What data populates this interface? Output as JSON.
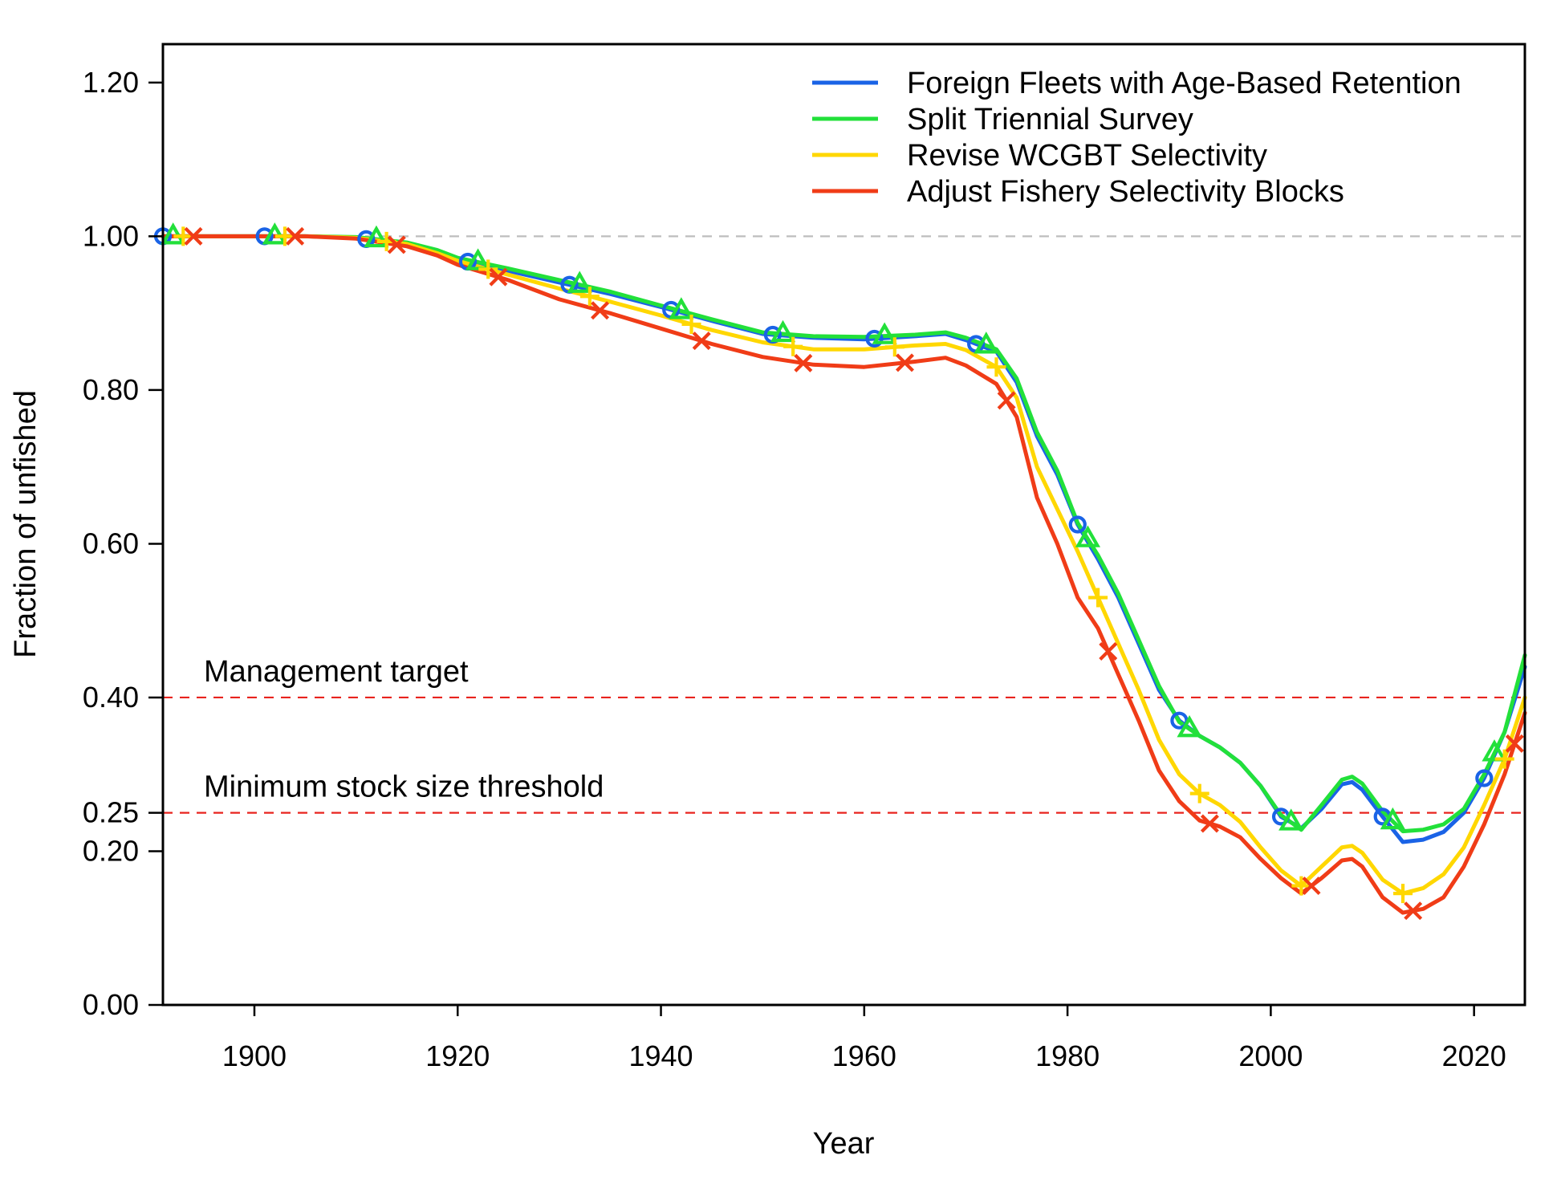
{
  "chart_data": {
    "type": "line",
    "xlabel": "Year",
    "ylabel": "Fraction of unfished",
    "xlim": [
      1891,
      2025
    ],
    "ylim": [
      0,
      1.25
    ],
    "xticks": [
      1900,
      1920,
      1940,
      1960,
      1980,
      2000,
      2020
    ],
    "xtick_labels": [
      "1900",
      "1920",
      "1940",
      "1960",
      "1980",
      "2000",
      "2020"
    ],
    "yticks": [
      0.0,
      0.2,
      0.25,
      0.4,
      0.6,
      0.8,
      1.0,
      1.2
    ],
    "ytick_labels": [
      "0.00",
      "0.20",
      "0.25",
      "0.40",
      "0.60",
      "0.80",
      "1.00",
      "1.20"
    ],
    "legend_position": "top-right",
    "grid": false,
    "reference_lines": [
      {
        "label": "",
        "y": 1.0,
        "color": "#bdbdbd"
      },
      {
        "label": "Management target",
        "y": 0.4,
        "color": "#e8231e"
      },
      {
        "label": "Minimum stock size threshold",
        "y": 0.25,
        "color": "#e8231e"
      }
    ],
    "series": [
      {
        "name": "Foreign Fleets with Age-Based Retention",
        "color": "#1a63e6",
        "marker": "circle",
        "marker_years": [
          1891,
          1901,
          1911,
          1921,
          1931,
          1941,
          1951,
          1961,
          1971,
          1981,
          1991,
          2001,
          2011,
          2021
        ],
        "x": [
          1891,
          1895,
          1900,
          1905,
          1910,
          1915,
          1918,
          1920,
          1925,
          1930,
          1935,
          1940,
          1945,
          1950,
          1955,
          1960,
          1965,
          1968,
          1970,
          1973,
          1975,
          1977,
          1979,
          1981,
          1983,
          1985,
          1987,
          1989,
          1991,
          1993,
          1995,
          1997,
          1999,
          2001,
          2003,
          2005,
          2007,
          2008,
          2009,
          2011,
          2013,
          2015,
          2017,
          2019,
          2021,
          2023,
          2025
        ],
        "y": [
          1.0,
          1.0,
          1.0,
          1.0,
          0.998,
          0.99,
          0.98,
          0.97,
          0.955,
          0.94,
          0.925,
          0.908,
          0.89,
          0.873,
          0.868,
          0.866,
          0.87,
          0.873,
          0.865,
          0.85,
          0.81,
          0.74,
          0.69,
          0.625,
          0.58,
          0.53,
          0.47,
          0.41,
          0.37,
          0.35,
          0.335,
          0.315,
          0.285,
          0.245,
          0.23,
          0.255,
          0.287,
          0.29,
          0.28,
          0.245,
          0.212,
          0.215,
          0.225,
          0.25,
          0.295,
          0.355,
          0.44
        ]
      },
      {
        "name": "Split Triennial Survey",
        "color": "#22e03a",
        "marker": "triangle",
        "marker_years": [
          1892,
          1902,
          1912,
          1922,
          1932,
          1942,
          1952,
          1962,
          1972,
          1982,
          1992,
          2002,
          2012,
          2022
        ],
        "x": [
          1891,
          1895,
          1900,
          1905,
          1910,
          1915,
          1918,
          1920,
          1925,
          1930,
          1935,
          1940,
          1945,
          1950,
          1955,
          1960,
          1965,
          1968,
          1970,
          1973,
          1975,
          1977,
          1979,
          1981,
          1983,
          1985,
          1987,
          1989,
          1991,
          1993,
          1995,
          1997,
          1999,
          2001,
          2003,
          2005,
          2007,
          2008,
          2009,
          2011,
          2013,
          2015,
          2017,
          2019,
          2021,
          2023,
          2025
        ],
        "y": [
          1.0,
          1.0,
          1.0,
          1.0,
          0.999,
          0.992,
          0.982,
          0.972,
          0.958,
          0.943,
          0.928,
          0.91,
          0.892,
          0.875,
          0.87,
          0.869,
          0.872,
          0.875,
          0.868,
          0.853,
          0.815,
          0.745,
          0.695,
          0.627,
          0.585,
          0.535,
          0.475,
          0.415,
          0.368,
          0.35,
          0.335,
          0.315,
          0.285,
          0.247,
          0.228,
          0.26,
          0.293,
          0.297,
          0.288,
          0.252,
          0.226,
          0.228,
          0.235,
          0.255,
          0.3,
          0.355,
          0.455
        ]
      },
      {
        "name": "Revise WCGBT Selectivity",
        "color": "#ffd700",
        "marker": "plus",
        "marker_years": [
          1893,
          1903,
          1913,
          1923,
          1933,
          1943,
          1953,
          1963,
          1973,
          1983,
          1993,
          2003,
          2013,
          2023
        ],
        "x": [
          1891,
          1895,
          1900,
          1905,
          1910,
          1915,
          1918,
          1920,
          1925,
          1930,
          1935,
          1940,
          1945,
          1950,
          1955,
          1960,
          1965,
          1968,
          1970,
          1973,
          1975,
          1977,
          1979,
          1981,
          1983,
          1985,
          1987,
          1989,
          1991,
          1993,
          1995,
          1997,
          1999,
          2001,
          2003,
          2005,
          2007,
          2008,
          2009,
          2011,
          2013,
          2015,
          2017,
          2019,
          2021,
          2023,
          2025
        ],
        "y": [
          1.0,
          1.0,
          1.0,
          1.0,
          0.998,
          0.99,
          0.978,
          0.968,
          0.95,
          0.932,
          0.915,
          0.897,
          0.878,
          0.862,
          0.853,
          0.853,
          0.858,
          0.86,
          0.852,
          0.83,
          0.79,
          0.7,
          0.645,
          0.59,
          0.53,
          0.47,
          0.41,
          0.345,
          0.3,
          0.275,
          0.26,
          0.238,
          0.205,
          0.175,
          0.155,
          0.18,
          0.205,
          0.207,
          0.198,
          0.163,
          0.145,
          0.152,
          0.17,
          0.205,
          0.26,
          0.32,
          0.4
        ]
      },
      {
        "name": "Adjust Fishery Selectivity Blocks",
        "color": "#f03c17",
        "marker": "x",
        "marker_years": [
          1894,
          1904,
          1914,
          1924,
          1934,
          1944,
          1954,
          1964,
          1974,
          1984,
          1994,
          2004,
          2014,
          2024
        ],
        "x": [
          1891,
          1895,
          1900,
          1905,
          1910,
          1915,
          1918,
          1920,
          1925,
          1930,
          1935,
          1940,
          1945,
          1950,
          1955,
          1960,
          1965,
          1968,
          1970,
          1973,
          1975,
          1977,
          1979,
          1981,
          1983,
          1985,
          1987,
          1989,
          1991,
          1993,
          1995,
          1997,
          1999,
          2001,
          2003,
          2005,
          2007,
          2008,
          2009,
          2011,
          2013,
          2015,
          2017,
          2019,
          2021,
          2023,
          2025
        ],
        "y": [
          1.0,
          1.0,
          1.0,
          1.0,
          0.997,
          0.987,
          0.975,
          0.963,
          0.943,
          0.918,
          0.9,
          0.88,
          0.86,
          0.843,
          0.833,
          0.83,
          0.837,
          0.842,
          0.832,
          0.808,
          0.765,
          0.66,
          0.6,
          0.53,
          0.49,
          0.43,
          0.37,
          0.305,
          0.265,
          0.24,
          0.232,
          0.218,
          0.19,
          0.165,
          0.145,
          0.165,
          0.188,
          0.19,
          0.18,
          0.14,
          0.12,
          0.125,
          0.14,
          0.18,
          0.235,
          0.3,
          0.38
        ]
      }
    ]
  }
}
